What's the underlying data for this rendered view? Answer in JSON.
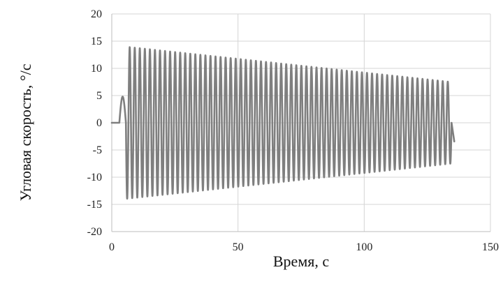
{
  "chart_data": {
    "type": "line",
    "title": "",
    "xlabel": "Время, с",
    "ylabel": "Угловая скорость, °/с",
    "xlim": [
      0,
      150
    ],
    "ylim": [
      -20,
      20
    ],
    "x_ticks": [
      "0",
      "50",
      "100",
      "150"
    ],
    "y_ticks": [
      "20",
      "15",
      "10",
      "5",
      "0",
      "-5",
      "-10",
      "-15",
      "-20"
    ],
    "grid": true,
    "legend": "none",
    "series_color": "#7f7f7f",
    "series": [
      {
        "initial_bump": {
          "t_start": 3.0,
          "t_end": 5.6,
          "peak": 4.8
        },
        "oscillation": {
          "t_start": 5.6,
          "t_end": 134.6,
          "period": 2.0,
          "amplitude_start": 14.0,
          "amplitude_end": 7.5
        },
        "tail": {
          "t_end": 135.7,
          "value_end": -3.5
        },
        "approx_points": [
          {
            "x": 0,
            "y": 0
          },
          {
            "x": 2.5,
            "y": 0
          },
          {
            "x": 3.8,
            "y": 4.8
          },
          {
            "x": 5.6,
            "y": 0
          },
          {
            "x": 6.2,
            "y": -14.0
          },
          {
            "x": 7.2,
            "y": 14.0
          },
          {
            "x": 50,
            "y": 11.5
          },
          {
            "x": 100,
            "y": 9.3
          },
          {
            "x": 134.6,
            "y": 7.5
          },
          {
            "x": 135.7,
            "y": -3.5
          }
        ]
      }
    ]
  }
}
